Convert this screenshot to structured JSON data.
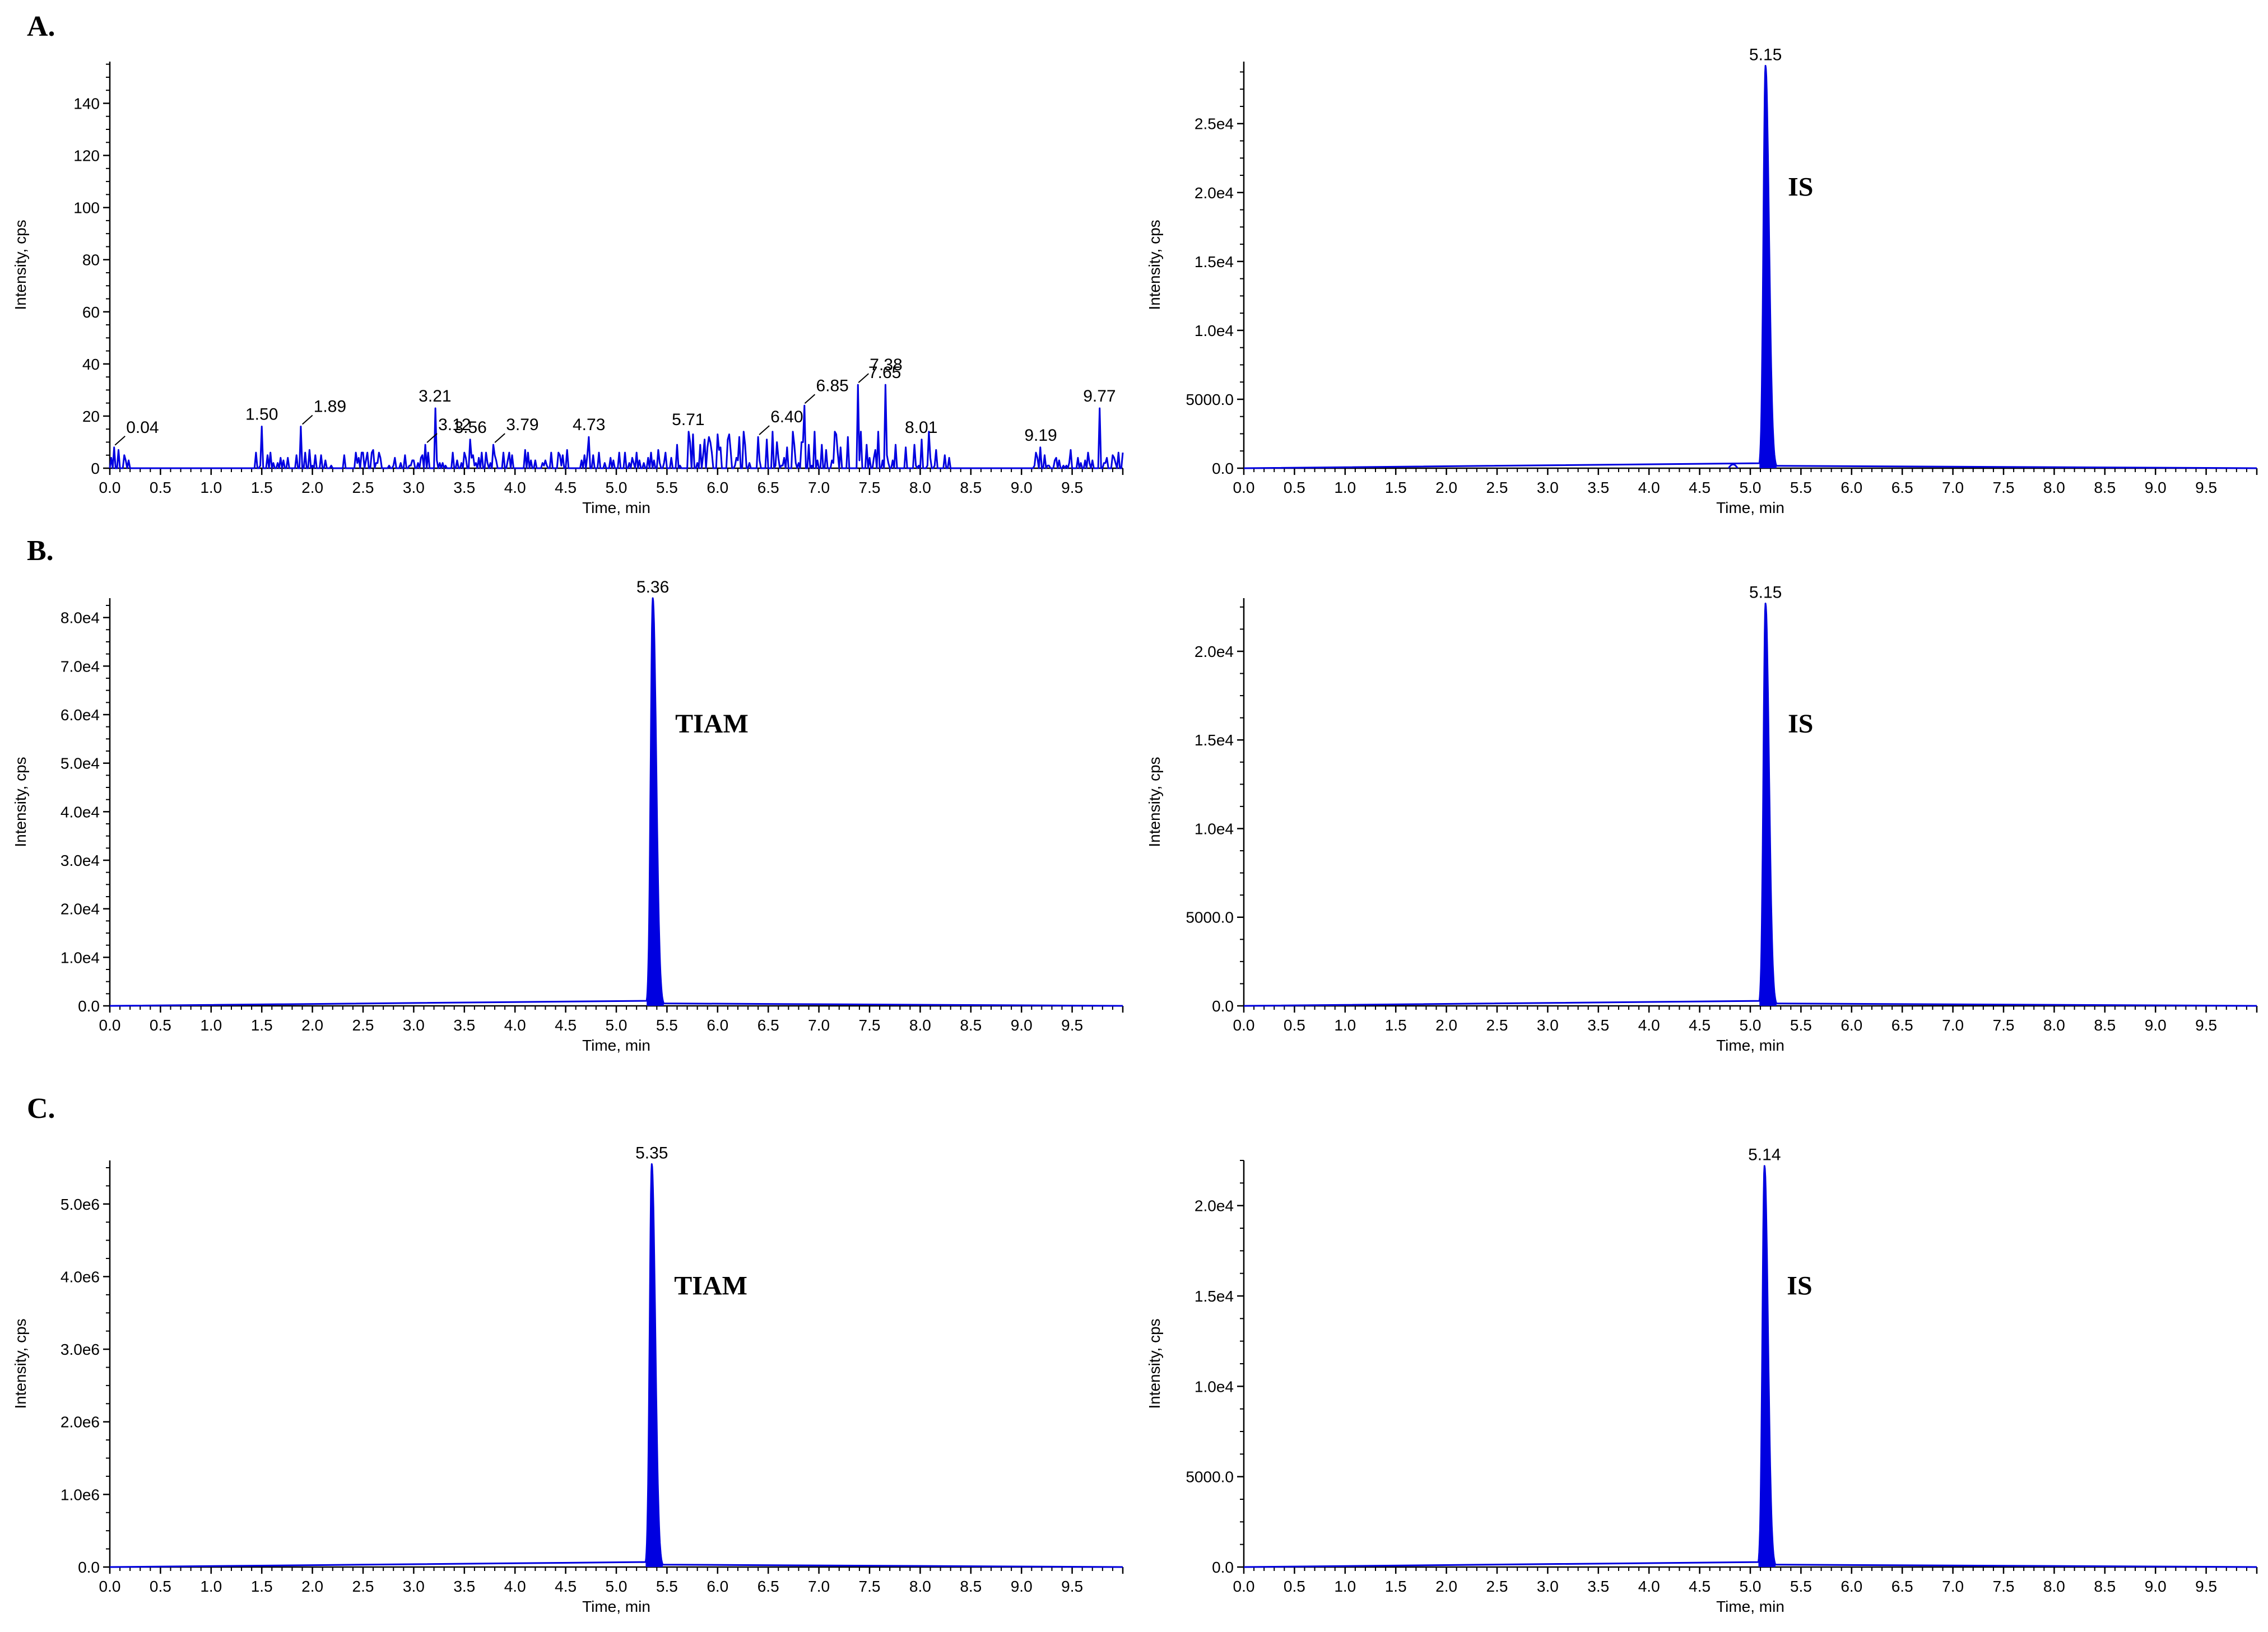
{
  "figure": {
    "panel_labels": [
      "A.",
      "B.",
      "C."
    ]
  },
  "colors": {
    "trace": "#0000e0",
    "axis": "#000000"
  },
  "chart_data": [
    {
      "type": "line",
      "id": "A-left",
      "panel": "A.",
      "xlabel": "Time, min",
      "ylabel": "Intensity, cps",
      "xlim": [
        0,
        10
      ],
      "ylim": [
        0,
        156
      ],
      "xticks": [
        "0.0",
        "0.5",
        "1.0",
        "1.5",
        "2.0",
        "2.5",
        "3.0",
        "3.5",
        "4.0",
        "4.5",
        "5.0",
        "5.5",
        "6.0",
        "6.5",
        "7.0",
        "7.5",
        "8.0",
        "8.5",
        "9.0",
        "9.5"
      ],
      "yticks": [
        0,
        20,
        40,
        60,
        80,
        100,
        120,
        140
      ],
      "ytick_labels": [
        "0",
        "20",
        "40",
        "60",
        "80",
        "100",
        "120",
        "140"
      ],
      "noise": true,
      "peaks": [
        {
          "x": 0.04,
          "y": 8,
          "label": "0.04",
          "leader": true
        },
        {
          "x": 1.5,
          "y": 16,
          "label": "1.50"
        },
        {
          "x": 1.89,
          "y": 16,
          "label": "1.89",
          "leader": true
        },
        {
          "x": 3.12,
          "y": 9,
          "label": "3.12",
          "leader": true
        },
        {
          "x": 3.21,
          "y": 23,
          "label": "3.21"
        },
        {
          "x": 3.56,
          "y": 11,
          "label": "3.56"
        },
        {
          "x": 3.79,
          "y": 9,
          "label": "3.79",
          "leader": true
        },
        {
          "x": 4.73,
          "y": 12,
          "label": "4.73"
        },
        {
          "x": 5.71,
          "y": 14,
          "label": "5.71"
        },
        {
          "x": 6.4,
          "y": 12,
          "label": "6.40",
          "leader": true
        },
        {
          "x": 6.85,
          "y": 24,
          "label": "6.85",
          "leader": true
        },
        {
          "x": 7.38,
          "y": 32,
          "label": "7.38",
          "leader": true
        },
        {
          "x": 7.65,
          "y": 32,
          "label": "7.65"
        },
        {
          "x": 8.01,
          "y": 11,
          "label": "8.01"
        },
        {
          "x": 9.19,
          "y": 8,
          "label": "9.19"
        },
        {
          "x": 9.77,
          "y": 23,
          "label": "9.77"
        }
      ]
    },
    {
      "type": "line",
      "id": "A-right",
      "xlabel": "Time, min",
      "ylabel": "Intensity, cps",
      "xlim": [
        0,
        10
      ],
      "ylim": [
        0,
        29500
      ],
      "xticks": [
        "0.0",
        "0.5",
        "1.0",
        "1.5",
        "2.0",
        "2.5",
        "3.0",
        "3.5",
        "4.0",
        "4.5",
        "5.0",
        "5.5",
        "6.0",
        "6.5",
        "7.0",
        "7.5",
        "8.0",
        "8.5",
        "9.0",
        "9.5"
      ],
      "yticks": [
        0,
        5000,
        10000,
        15000,
        20000,
        25000
      ],
      "ytick_labels": [
        "0.0",
        "5000.0",
        "1.0e4",
        "1.5e4",
        "2.0e4",
        "2.5e4"
      ],
      "noise": false,
      "main_peak": {
        "x": 5.15,
        "y": 29200,
        "label": "5.15",
        "annotation": "IS"
      },
      "minor_peaks": [
        {
          "x": 4.83,
          "y": 300
        }
      ]
    },
    {
      "type": "line",
      "id": "B-left",
      "panel": "B.",
      "xlabel": "Time, min",
      "ylabel": "Intensity, cps",
      "xlim": [
        0,
        10
      ],
      "ylim": [
        0,
        84000
      ],
      "xticks": [
        "0.0",
        "0.5",
        "1.0",
        "1.5",
        "2.0",
        "2.5",
        "3.0",
        "3.5",
        "4.0",
        "4.5",
        "5.0",
        "5.5",
        "6.0",
        "6.5",
        "7.0",
        "7.5",
        "8.0",
        "8.5",
        "9.0",
        "9.5"
      ],
      "yticks": [
        0,
        10000,
        20000,
        30000,
        40000,
        50000,
        60000,
        70000,
        80000
      ],
      "ytick_labels": [
        "0.0",
        "1.0e4",
        "2.0e4",
        "3.0e4",
        "4.0e4",
        "5.0e4",
        "6.0e4",
        "7.0e4",
        "8.0e4"
      ],
      "noise": false,
      "main_peak": {
        "x": 5.36,
        "y": 84000,
        "label": "5.36",
        "annotation": "TIAM"
      }
    },
    {
      "type": "line",
      "id": "B-right",
      "xlabel": "Time, min",
      "ylabel": "Intensity, cps",
      "xlim": [
        0,
        10
      ],
      "ylim": [
        0,
        23000
      ],
      "xticks": [
        "0.0",
        "0.5",
        "1.0",
        "1.5",
        "2.0",
        "2.5",
        "3.0",
        "3.5",
        "4.0",
        "4.5",
        "5.0",
        "5.5",
        "6.0",
        "6.5",
        "7.0",
        "7.5",
        "8.0",
        "8.5",
        "9.0",
        "9.5"
      ],
      "yticks": [
        0,
        5000,
        10000,
        15000,
        20000
      ],
      "ytick_labels": [
        "0.0",
        "5000.0",
        "1.0e4",
        "1.5e4",
        "2.0e4"
      ],
      "noise": false,
      "main_peak": {
        "x": 5.15,
        "y": 22700,
        "label": "5.15",
        "annotation": "IS"
      }
    },
    {
      "type": "line",
      "id": "C-left",
      "panel": "C.",
      "xlabel": "Time, min",
      "ylabel": "Intensity, cps",
      "xlim": [
        0,
        10
      ],
      "ylim": [
        0,
        5600000
      ],
      "xticks": [
        "0.0",
        "0.5",
        "1.0",
        "1.5",
        "2.0",
        "2.5",
        "3.0",
        "3.5",
        "4.0",
        "4.5",
        "5.0",
        "5.5",
        "6.0",
        "6.5",
        "7.0",
        "7.5",
        "8.0",
        "8.5",
        "9.0",
        "9.5"
      ],
      "yticks": [
        0,
        1000000,
        2000000,
        3000000,
        4000000,
        5000000
      ],
      "ytick_labels": [
        "0.0",
        "1.0e6",
        "2.0e6",
        "3.0e6",
        "4.0e6",
        "5.0e6"
      ],
      "noise": false,
      "main_peak": {
        "x": 5.35,
        "y": 5550000,
        "label": "5.35",
        "annotation": "TIAM"
      }
    },
    {
      "type": "line",
      "id": "C-right",
      "xlabel": "Time, min",
      "ylabel": "Intensity, cps",
      "xlim": [
        0,
        10
      ],
      "ylim": [
        0,
        22500
      ],
      "xticks": [
        "0.0",
        "0.5",
        "1.0",
        "1.5",
        "2.0",
        "2.5",
        "3.0",
        "3.5",
        "4.0",
        "4.5",
        "5.0",
        "5.5",
        "6.0",
        "6.5",
        "7.0",
        "7.5",
        "8.0",
        "8.5",
        "9.0",
        "9.5"
      ],
      "yticks": [
        0,
        5000,
        10000,
        15000,
        20000
      ],
      "ytick_labels": [
        "0.0",
        "5000.0",
        "1.0e4",
        "1.5e4",
        "2.0e4"
      ],
      "noise": false,
      "main_peak": {
        "x": 5.14,
        "y": 22200,
        "label": "5.14",
        "annotation": "IS"
      }
    }
  ]
}
